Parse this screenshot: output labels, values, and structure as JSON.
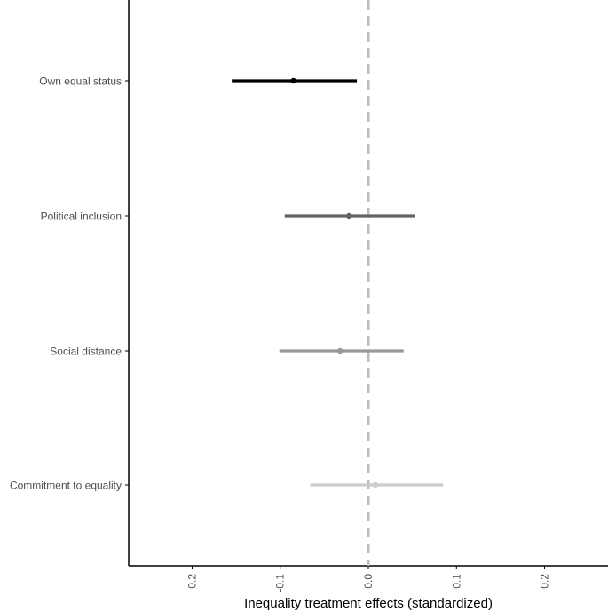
{
  "chart_data": {
    "type": "coefficient-plot",
    "xlabel": "Inequality treatment effects (standardized)",
    "x_ticks": [
      -0.2,
      -0.1,
      0.0,
      0.1,
      0.2
    ],
    "x_tick_labels": [
      "-0.2",
      "-0.1",
      "0.0",
      "0.1",
      "0.2"
    ],
    "xlim": [
      -0.272,
      0.272
    ],
    "reference_line": {
      "x": 0.0,
      "style": "dashed",
      "color": "#bdbdbd"
    },
    "grid": false,
    "series": [
      {
        "label": "Own equal status",
        "estimate": -0.085,
        "ci_low": -0.155,
        "ci_high": -0.013,
        "color": "#000000"
      },
      {
        "label": "Political inclusion",
        "estimate": -0.022,
        "ci_low": -0.095,
        "ci_high": 0.053,
        "color": "#636363"
      },
      {
        "label": "Social distance",
        "estimate": -0.032,
        "ci_low": -0.101,
        "ci_high": 0.04,
        "color": "#999999"
      },
      {
        "label": "Commitment to equality",
        "estimate": 0.008,
        "ci_low": -0.066,
        "ci_high": 0.085,
        "color": "#cccccc"
      }
    ]
  }
}
